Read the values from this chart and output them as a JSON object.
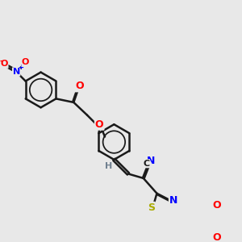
{
  "background_color": "#e8e8e8",
  "bond_color": "#1a1a1a",
  "bond_width": 1.8,
  "atom_colors": {
    "N": "#0000ff",
    "O": "#ff0000",
    "S": "#cccc00",
    "H": "#708090",
    "C": "#1a1a1a"
  },
  "font_size_atom": 9,
  "font_size_small": 7
}
